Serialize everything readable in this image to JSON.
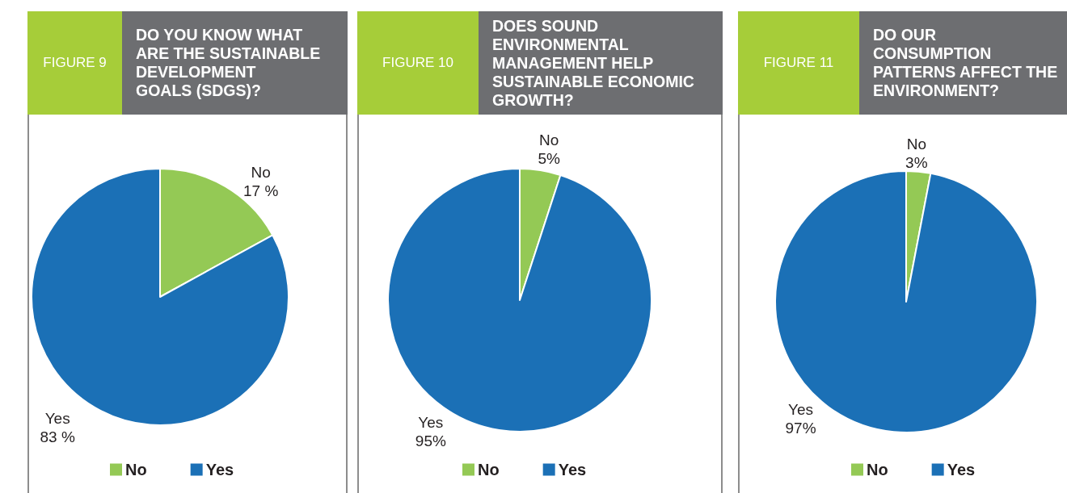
{
  "chart_data": [
    {
      "type": "pie",
      "subtitle": "FIGURE 9",
      "title": "DO YOU KNOW WHAT\nARE THE SUSTAINABLE\nDEVELOPMENT\nGOALS (SDGS)?",
      "categories": [
        "No",
        "Yes"
      ],
      "values": [
        17,
        83
      ],
      "colors": [
        "#94c955",
        "#1b70b6"
      ],
      "value_labels": [
        "17 %",
        "83 %"
      ],
      "legend": "bottom"
    },
    {
      "type": "pie",
      "subtitle": "FIGURE 10",
      "title": "DOES SOUND\nENVIRONMENTAL\nMANAGEMENT HELP\nSUSTAINABLE ECONOMIC\nGROWTH?",
      "categories": [
        "No",
        "Yes"
      ],
      "values": [
        5,
        95
      ],
      "colors": [
        "#94c955",
        "#1b70b6"
      ],
      "value_labels": [
        "5%",
        "95%"
      ],
      "legend": "bottom"
    },
    {
      "type": "pie",
      "subtitle": "FIGURE 11",
      "title": "DO OUR\nCONSUMPTION\nPATTERNS AFFECT THE\nENVIRONMENT?",
      "categories": [
        "No",
        "Yes"
      ],
      "values": [
        3,
        97
      ],
      "colors": [
        "#94c955",
        "#1b70b6"
      ],
      "value_labels": [
        "3%",
        "97%"
      ],
      "legend": "bottom"
    }
  ]
}
